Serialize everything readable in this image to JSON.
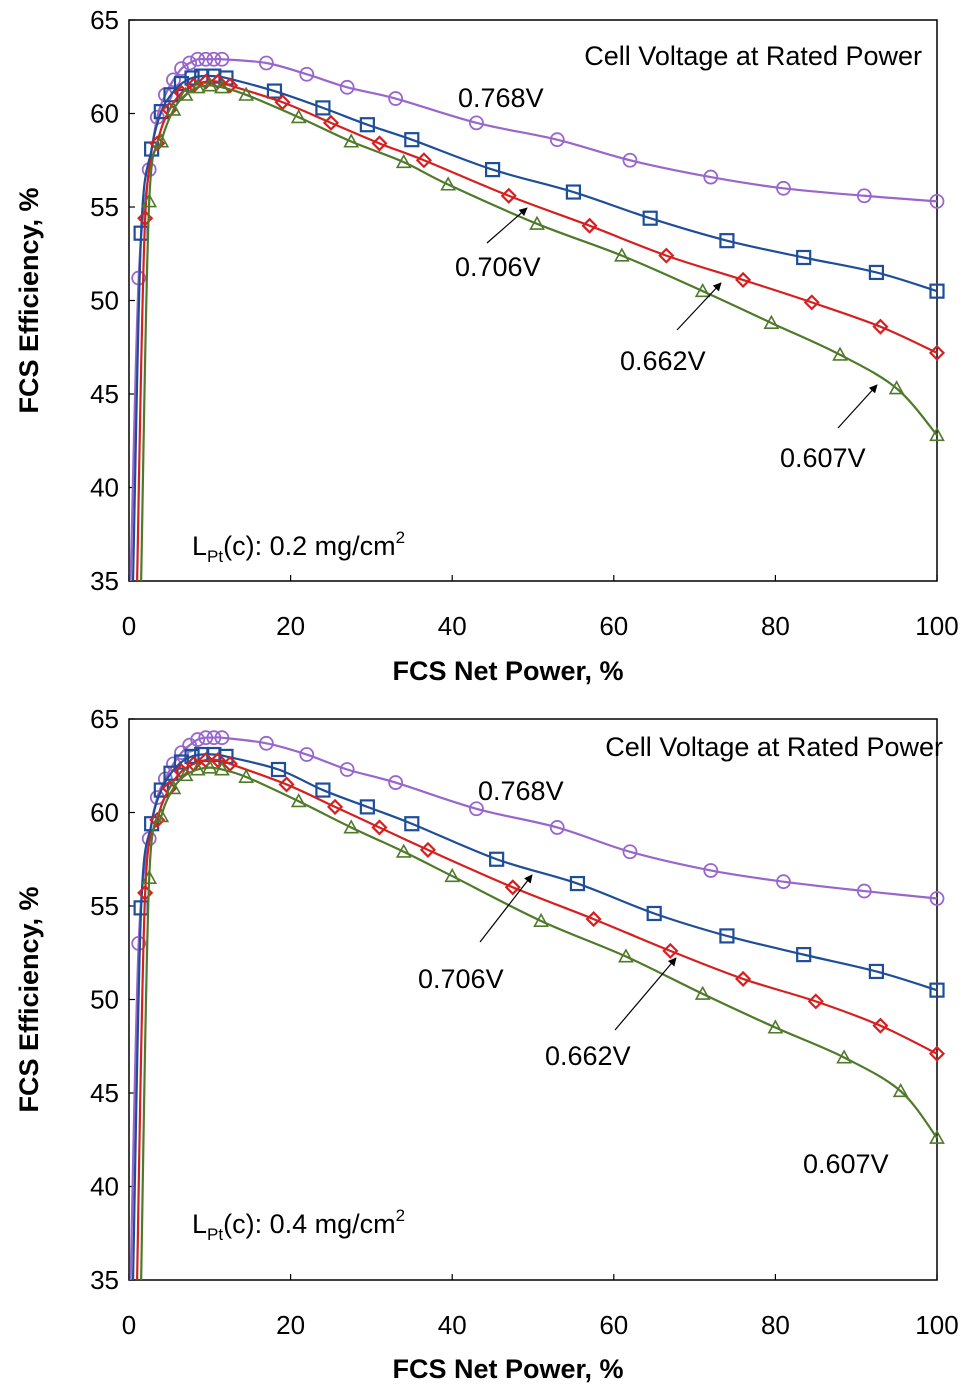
{
  "chart_data": [
    {
      "type": "line",
      "xlabel": "FCS Net Power, %",
      "ylabel": "FCS Efficiency, %",
      "xlim": [
        0,
        100
      ],
      "ylim": [
        35,
        65
      ],
      "xticks": [
        "0",
        "20",
        "40",
        "60",
        "80",
        "100"
      ],
      "yticks": [
        "35",
        "40",
        "45",
        "50",
        "55",
        "60",
        "65"
      ],
      "grid": false,
      "legend_title": "Cell Voltage at Rated Power",
      "loading": {
        "prefix": "L",
        "sub": "Pt",
        "mid": "(c): 0.2 mg/cm",
        "sup": "2"
      },
      "series": [
        {
          "name": "0.768V",
          "color": "#9966cc",
          "marker": "circle",
          "x": [
            1.2,
            2.5,
            3.5,
            4.5,
            5.5,
            6.5,
            7.5,
            8.5,
            9.5,
            10.5,
            11.5,
            17,
            22,
            27,
            33,
            43,
            53,
            62,
            72,
            81,
            91,
            100
          ],
          "y": [
            51.2,
            57.0,
            59.8,
            61.0,
            61.8,
            62.4,
            62.7,
            62.9,
            62.9,
            62.9,
            62.9,
            62.7,
            62.1,
            61.4,
            60.8,
            59.5,
            58.6,
            57.5,
            56.6,
            56.0,
            55.6,
            55.3
          ]
        },
        {
          "name": "0.706V",
          "color": "#1f4e99",
          "marker": "square",
          "x": [
            1.5,
            2.8,
            4.0,
            5.2,
            6.5,
            7.8,
            9.0,
            10.5,
            12.0,
            18,
            24,
            29.5,
            35,
            45,
            55,
            64.5,
            74,
            83.5,
            92.5,
            100
          ],
          "y": [
            53.6,
            58.1,
            60.1,
            61.0,
            61.6,
            61.9,
            62.0,
            62.0,
            61.9,
            61.2,
            60.3,
            59.4,
            58.6,
            57.0,
            55.8,
            54.4,
            53.2,
            52.3,
            51.5,
            50.5
          ]
        },
        {
          "name": "0.662V",
          "color": "#d62020",
          "marker": "diamond",
          "x": [
            2.0,
            3.5,
            5.0,
            6.5,
            8.0,
            9.5,
            11.0,
            12.5,
            19,
            25,
            31,
            36.5,
            47,
            57,
            66.5,
            76,
            84.5,
            93,
            100
          ],
          "y": [
            54.4,
            58.4,
            60.2,
            61.1,
            61.5,
            61.7,
            61.7,
            61.5,
            60.6,
            59.5,
            58.4,
            57.5,
            55.6,
            54.0,
            52.4,
            51.1,
            49.9,
            48.6,
            47.2
          ]
        },
        {
          "name": "0.607V",
          "color": "#4e7a2a",
          "marker": "triangle",
          "x": [
            2.5,
            4.0,
            5.5,
            7.0,
            8.5,
            10.0,
            11.5,
            14.5,
            21,
            27.5,
            34,
            39.5,
            50.5,
            61,
            71,
            79.5,
            88,
            95,
            100
          ],
          "y": [
            55.3,
            58.5,
            60.2,
            61.0,
            61.4,
            61.5,
            61.4,
            61.0,
            59.8,
            58.5,
            57.4,
            56.2,
            54.1,
            52.4,
            50.5,
            48.8,
            47.1,
            45.3,
            42.8
          ]
        }
      ],
      "annotations": [
        "0.768V",
        "0.706V",
        "0.662V",
        "0.607V"
      ]
    },
    {
      "type": "line",
      "xlabel": "FCS Net Power, %",
      "ylabel": "FCS Efficiency, %",
      "xlim": [
        0,
        100
      ],
      "ylim": [
        35,
        65
      ],
      "xticks": [
        "0",
        "20",
        "40",
        "60",
        "80",
        "100"
      ],
      "yticks": [
        "35",
        "40",
        "45",
        "50",
        "55",
        "60",
        "65"
      ],
      "grid": false,
      "legend_title": "Cell Voltage at Rated Power",
      "loading": {
        "prefix": "L",
        "sub": "Pt",
        "mid": "(c): 0.4 mg/cm",
        "sup": "2"
      },
      "series": [
        {
          "name": "0.768V",
          "color": "#9966cc",
          "marker": "circle",
          "x": [
            1.2,
            2.5,
            3.5,
            4.5,
            5.5,
            6.5,
            7.5,
            8.5,
            9.5,
            10.5,
            11.5,
            17,
            22,
            27,
            33,
            43,
            53,
            62,
            72,
            81,
            91,
            100
          ],
          "y": [
            53.0,
            58.6,
            60.8,
            61.8,
            62.6,
            63.2,
            63.6,
            63.9,
            64.0,
            64.0,
            64.0,
            63.7,
            63.1,
            62.3,
            61.6,
            60.2,
            59.2,
            57.9,
            56.9,
            56.3,
            55.8,
            55.4
          ]
        },
        {
          "name": "0.706V",
          "color": "#1f4e99",
          "marker": "square",
          "x": [
            1.5,
            2.8,
            4.0,
            5.2,
            6.5,
            7.8,
            9.0,
            10.5,
            12.0,
            18.5,
            24,
            29.5,
            35,
            45.5,
            55.5,
            65,
            74,
            83.5,
            92.5,
            100
          ],
          "y": [
            54.9,
            59.4,
            61.2,
            62.1,
            62.7,
            63.0,
            63.1,
            63.1,
            63.0,
            62.3,
            61.2,
            60.3,
            59.4,
            57.5,
            56.2,
            54.6,
            53.4,
            52.4,
            51.5,
            50.5
          ]
        },
        {
          "name": "0.662V",
          "color": "#d62020",
          "marker": "diamond",
          "x": [
            2.0,
            3.5,
            5.0,
            6.5,
            8.0,
            9.5,
            11.0,
            12.5,
            19.5,
            25.5,
            31,
            37,
            47.5,
            57.5,
            67,
            76,
            85,
            93,
            100
          ],
          "y": [
            55.7,
            59.6,
            61.3,
            62.2,
            62.6,
            62.8,
            62.8,
            62.6,
            61.5,
            60.3,
            59.2,
            58.0,
            56.0,
            54.3,
            52.6,
            51.1,
            49.9,
            48.6,
            47.1
          ]
        },
        {
          "name": "0.607V",
          "color": "#4e7a2a",
          "marker": "triangle",
          "x": [
            2.5,
            4.0,
            5.5,
            7.0,
            8.5,
            10.0,
            11.5,
            14.5,
            21,
            27.5,
            34,
            40,
            51,
            61.5,
            71,
            80,
            88.5,
            95.5,
            100
          ],
          "y": [
            56.5,
            59.8,
            61.3,
            62.0,
            62.3,
            62.4,
            62.3,
            61.9,
            60.6,
            59.2,
            57.9,
            56.6,
            54.2,
            52.3,
            50.3,
            48.5,
            46.9,
            45.1,
            42.6
          ]
        }
      ],
      "annotations": [
        "0.768V",
        "0.706V",
        "0.662V",
        "0.607V"
      ]
    }
  ]
}
